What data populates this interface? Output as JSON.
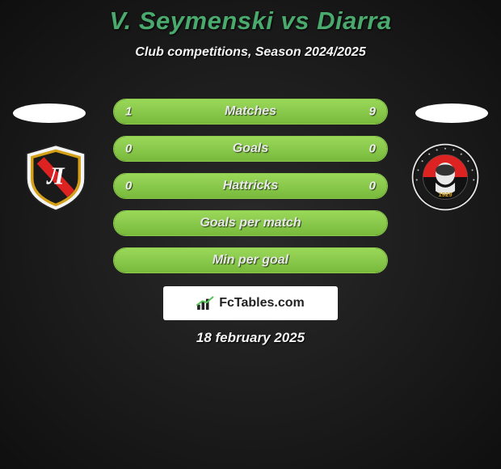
{
  "title": "V. Seymenski vs Diarra",
  "subtitle": "Club competitions, Season 2024/2025",
  "date": "18 february 2025",
  "watermark_text": "FcTables.com",
  "colors": {
    "accent_green": "#4aa96c",
    "bar_fill_top": "#9ad85a",
    "bar_fill_bottom": "#78b93c",
    "bar_border": "#8acb4a",
    "text_light": "#f5f5f5"
  },
  "bars": [
    {
      "label": "Matches",
      "left_value": "1",
      "right_value": "9",
      "left_pct": 10,
      "right_pct": 90
    },
    {
      "label": "Goals",
      "left_value": "0",
      "right_value": "0",
      "left_pct": 0,
      "right_pct": 0,
      "empty_full": true
    },
    {
      "label": "Hattricks",
      "left_value": "0",
      "right_value": "0",
      "left_pct": 0,
      "right_pct": 0,
      "empty_full": true
    },
    {
      "label": "Goals per match",
      "left_value": "",
      "right_value": "",
      "left_pct": 0,
      "right_pct": 0,
      "empty_full": true
    },
    {
      "label": "Min per goal",
      "left_value": "",
      "right_value": "",
      "left_pct": 0,
      "right_pct": 0,
      "empty_full": true
    }
  ],
  "badge_left": {
    "outer": "#f4f4f4",
    "inner_border": "#d4a017",
    "inner_bg": "#1a1a1a",
    "stripe": "#d22",
    "letter": "Л"
  },
  "badge_right": {
    "outer": "#e8e8e8",
    "ring_text": "#c0c0c0",
    "inner_top": "#d22",
    "inner_bottom": "#111",
    "year": "1929"
  }
}
